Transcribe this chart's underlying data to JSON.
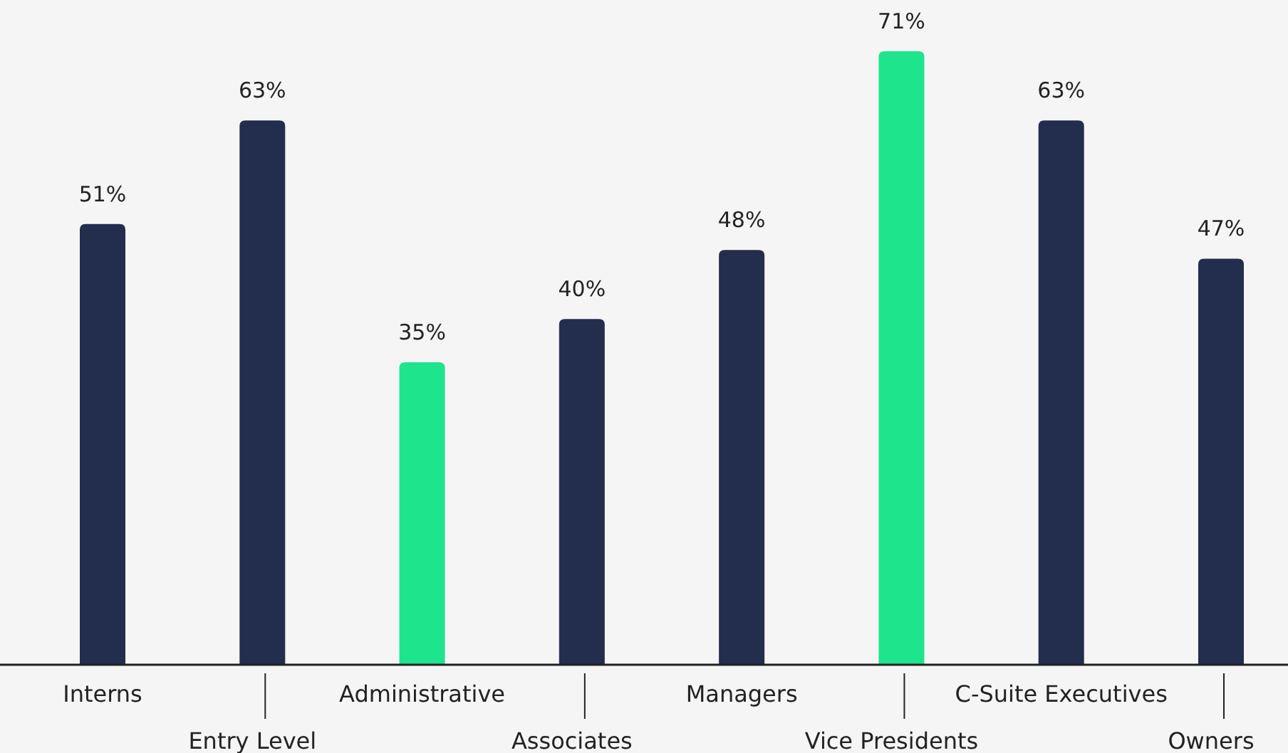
{
  "chart_data": {
    "type": "bar",
    "categories": [
      "Interns",
      "Entry Level",
      "Administrative",
      "Associates",
      "Managers",
      "Vice Presidents",
      "C-Suite Executives",
      "Owners"
    ],
    "values": [
      51,
      63,
      35,
      40,
      48,
      71,
      63,
      47
    ],
    "colors": [
      "#232d4e",
      "#232d4e",
      "#1ee58b",
      "#232d4e",
      "#232d4e",
      "#1ee58b",
      "#232d4e",
      "#232d4e"
    ],
    "value_labels": [
      "51%",
      "63%",
      "35%",
      "40%",
      "48%",
      "71%",
      "63%",
      "47%"
    ],
    "ylim": [
      0,
      71
    ],
    "tick_labels": "x"
  }
}
